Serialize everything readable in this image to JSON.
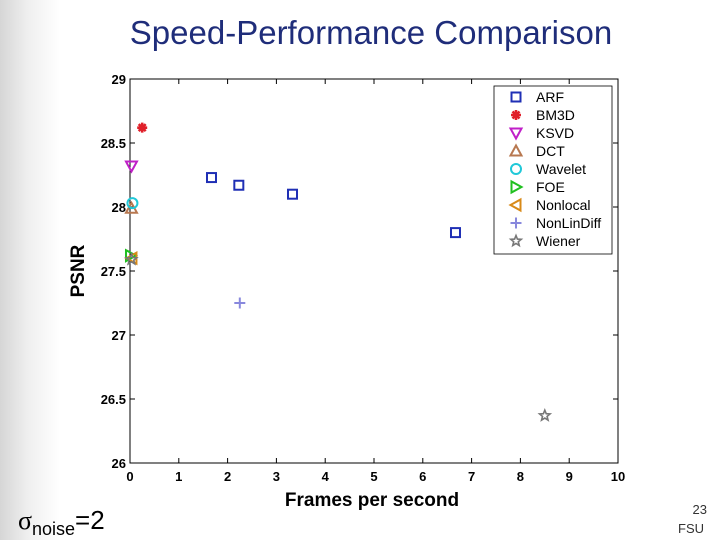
{
  "slide": {
    "title": "Speed-Performance Comparison",
    "sigma_symbol": "σ",
    "sigma_subscript": "noise",
    "sigma_value": "=2",
    "page_number": "23",
    "footer": "FSU"
  },
  "chart_data": {
    "type": "scatter",
    "title": "",
    "xlabel": "Frames per second",
    "ylabel": "PSNR",
    "xlim": [
      0,
      10
    ],
    "ylim": [
      26,
      29
    ],
    "xticks": [
      "0",
      "1",
      "2",
      "3",
      "4",
      "5",
      "6",
      "7",
      "8",
      "9",
      "10"
    ],
    "yticks": [
      "26",
      "26.5",
      "27",
      "27.5",
      "28",
      "28.5",
      "29"
    ],
    "grid": false,
    "legend_position": "top-right",
    "series": [
      {
        "name": "ARF",
        "marker": "square",
        "color": "#1f2fb5",
        "points": [
          [
            1.67,
            28.23
          ],
          [
            2.23,
            28.17
          ],
          [
            3.33,
            28.1
          ],
          [
            6.67,
            27.8
          ]
        ]
      },
      {
        "name": "BM3D",
        "marker": "cross",
        "color": "#e0202a",
        "points": [
          [
            0.25,
            28.62
          ]
        ]
      },
      {
        "name": "KSVD",
        "marker": "triangle-down",
        "color": "#c020c8",
        "points": [
          [
            0.03,
            28.32
          ]
        ]
      },
      {
        "name": "DCT",
        "marker": "triangle-up",
        "color": "#b87850",
        "points": [
          [
            0.03,
            27.99
          ]
        ]
      },
      {
        "name": "Wavelet",
        "marker": "circle",
        "color": "#20c8d8",
        "points": [
          [
            0.05,
            28.03
          ]
        ]
      },
      {
        "name": "FOE",
        "marker": "triangle-right",
        "color": "#20c020",
        "points": [
          [
            0.01,
            27.62
          ]
        ]
      },
      {
        "name": "Nonlocal",
        "marker": "triangle-left",
        "color": "#d88a18",
        "points": [
          [
            0.04,
            27.6
          ]
        ]
      },
      {
        "name": "NonLinDiff",
        "marker": "plus",
        "color": "#8888dd",
        "points": [
          [
            2.25,
            27.25
          ]
        ]
      },
      {
        "name": "Wiener",
        "marker": "star",
        "color": "#777777",
        "points": [
          [
            0.03,
            27.59
          ],
          [
            8.5,
            26.37
          ]
        ]
      }
    ]
  }
}
